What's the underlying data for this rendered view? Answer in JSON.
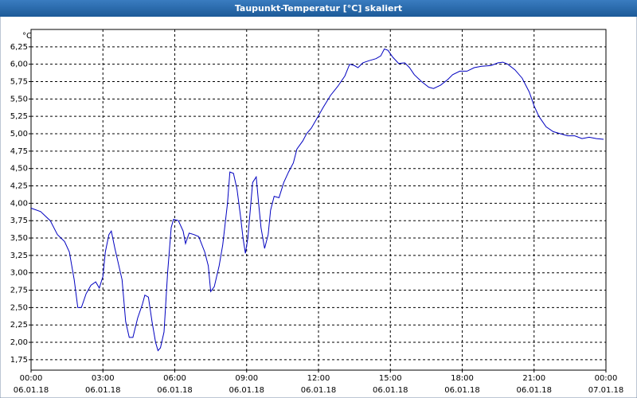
{
  "chart_data": {
    "type": "line",
    "title": "Taupunkt-Temperatur [°C] skaliert",
    "y_unit": "°C",
    "color": "#0000c0",
    "grid": true,
    "x": [
      0,
      0.4,
      0.8,
      1.1,
      1.4,
      1.6,
      1.8,
      1.95,
      2.1,
      2.3,
      2.5,
      2.7,
      2.85,
      3.0,
      3.1,
      3.25,
      3.35,
      3.5,
      3.7,
      3.8,
      3.95,
      4.1,
      4.25,
      4.45,
      4.65,
      4.75,
      4.9,
      5.05,
      5.2,
      5.3,
      5.4,
      5.55,
      5.7,
      5.85,
      5.95,
      6.15,
      6.35,
      6.45,
      6.6,
      6.8,
      7.0,
      7.25,
      7.4,
      7.5,
      7.65,
      7.85,
      8.0,
      8.2,
      8.3,
      8.45,
      8.6,
      8.75,
      8.85,
      8.95,
      9.05,
      9.15,
      9.25,
      9.4,
      9.5,
      9.6,
      9.75,
      9.9,
      10.0,
      10.15,
      10.35,
      10.55,
      10.75,
      10.95,
      11.1,
      11.35,
      11.5,
      11.7,
      11.9,
      12.2,
      12.5,
      12.8,
      13.1,
      13.3,
      13.5,
      13.65,
      13.85,
      14.1,
      14.4,
      14.6,
      14.75,
      14.9,
      15.1,
      15.35,
      15.6,
      15.8,
      16.0,
      16.3,
      16.6,
      16.8,
      17.1,
      17.4,
      17.6,
      17.9,
      18.2,
      18.5,
      18.8,
      19.2,
      19.5,
      19.7,
      19.9,
      20.2,
      20.5,
      20.8,
      21.0,
      21.2,
      21.5,
      21.8,
      22.1,
      22.4,
      22.7,
      23.0,
      23.3,
      23.6,
      23.9
    ],
    "values": [
      3.93,
      3.88,
      3.75,
      3.55,
      3.45,
      3.3,
      2.9,
      2.5,
      2.5,
      2.7,
      2.82,
      2.87,
      2.78,
      2.95,
      3.3,
      3.55,
      3.6,
      3.35,
      3.05,
      2.9,
      2.3,
      2.07,
      2.07,
      2.35,
      2.55,
      2.68,
      2.65,
      2.3,
      2.0,
      1.88,
      1.92,
      2.15,
      3.0,
      3.65,
      3.77,
      3.75,
      3.6,
      3.42,
      3.57,
      3.55,
      3.52,
      3.3,
      3.1,
      2.73,
      2.8,
      3.1,
      3.4,
      4.0,
      4.45,
      4.43,
      4.2,
      3.8,
      3.5,
      3.28,
      3.5,
      3.9,
      4.3,
      4.38,
      4.0,
      3.65,
      3.35,
      3.55,
      3.9,
      4.1,
      4.08,
      4.3,
      4.45,
      4.58,
      4.78,
      4.9,
      5.0,
      5.08,
      5.2,
      5.38,
      5.55,
      5.68,
      5.83,
      6.0,
      5.98,
      5.95,
      6.02,
      6.05,
      6.08,
      6.12,
      6.22,
      6.2,
      6.1,
      6.01,
      6.02,
      5.95,
      5.85,
      5.75,
      5.67,
      5.65,
      5.7,
      5.78,
      5.85,
      5.9,
      5.9,
      5.95,
      5.97,
      5.98,
      6.02,
      6.03,
      6.0,
      5.92,
      5.8,
      5.6,
      5.4,
      5.25,
      5.1,
      5.03,
      5.0,
      4.97,
      4.97,
      4.93,
      4.95,
      4.93,
      4.92
    ],
    "xlim": [
      0,
      24
    ],
    "xticks": [
      {
        "value": 0,
        "label": "00:00",
        "date": "06.01.18"
      },
      {
        "value": 3,
        "label": "03:00",
        "date": "06.01.18"
      },
      {
        "value": 6,
        "label": "06:00",
        "date": "06.01.18"
      },
      {
        "value": 9,
        "label": "09:00",
        "date": "06.01.18"
      },
      {
        "value": 12,
        "label": "12:00",
        "date": "06.01.18"
      },
      {
        "value": 15,
        "label": "15:00",
        "date": "06.01.18"
      },
      {
        "value": 18,
        "label": "18:00",
        "date": "06.01.18"
      },
      {
        "value": 21,
        "label": "21:00",
        "date": "06.01.18"
      },
      {
        "value": 24,
        "label": "00:00",
        "date": "07.01.18"
      }
    ],
    "ylim": [
      1.6,
      6.5
    ],
    "yticks": [
      {
        "value": 1.75,
        "label": "1,75"
      },
      {
        "value": 2,
        "label": "2,00"
      },
      {
        "value": 2.25,
        "label": "2,25"
      },
      {
        "value": 2.5,
        "label": "2,50"
      },
      {
        "value": 2.75,
        "label": "2,75"
      },
      {
        "value": 3,
        "label": "3,00"
      },
      {
        "value": 3.25,
        "label": "3,25"
      },
      {
        "value": 3.5,
        "label": "3,50"
      },
      {
        "value": 3.75,
        "label": "3,75"
      },
      {
        "value": 4,
        "label": "4,00"
      },
      {
        "value": 4.25,
        "label": "4,25"
      },
      {
        "value": 4.5,
        "label": "4,50"
      },
      {
        "value": 4.75,
        "label": "4,75"
      },
      {
        "value": 5,
        "label": "5,00"
      },
      {
        "value": 5.25,
        "label": "5,25"
      },
      {
        "value": 5.5,
        "label": "5,50"
      },
      {
        "value": 5.75,
        "label": "5,75"
      },
      {
        "value": 6,
        "label": "6,00"
      },
      {
        "value": 6.25,
        "label": "6,25"
      }
    ]
  }
}
